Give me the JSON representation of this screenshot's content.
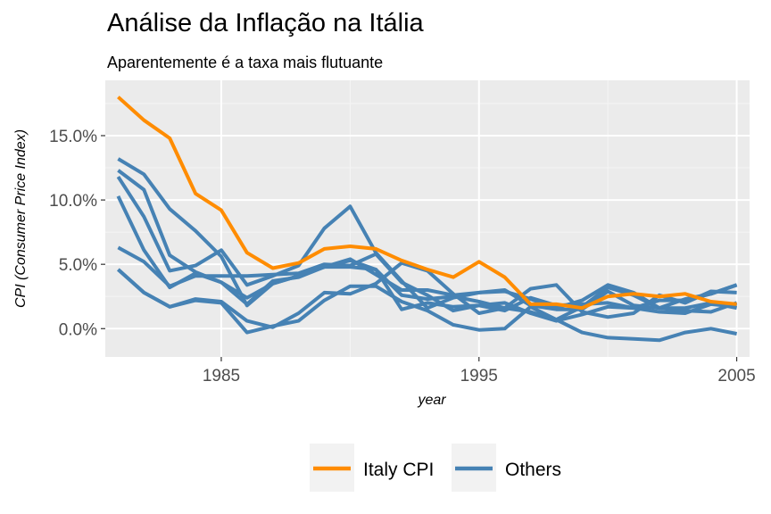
{
  "chart_data": {
    "type": "line",
    "title": "Análise da Inflação na Itália",
    "subtitle": "Aparentemente é a taxa mais flutuante",
    "xlabel": "year",
    "ylabel": "CPI (Consumer Price Index)",
    "xlim": [
      1980.5,
      2005.5
    ],
    "ylim": [
      -2.2,
      19.3
    ],
    "x_ticks": [
      1985,
      1995,
      2005
    ],
    "x_tick_labels": [
      "1985",
      "1995",
      "2005"
    ],
    "y_ticks": [
      0,
      5,
      10,
      15
    ],
    "y_tick_labels": [
      "0.0%",
      "5.0%",
      "10.0%",
      "15.0%"
    ],
    "grid": true,
    "legend_position": "bottom",
    "legend": [
      {
        "label": "Italy CPI",
        "color": "#ff8c00"
      },
      {
        "label": "Others",
        "color": "#4682b4"
      }
    ],
    "x": [
      1981,
      1982,
      1983,
      1984,
      1985,
      1986,
      1987,
      1988,
      1989,
      1990,
      1991,
      1992,
      1993,
      1994,
      1995,
      1996,
      1997,
      1998,
      1999,
      2000,
      2001,
      2002,
      2003,
      2004,
      2005
    ],
    "series": [
      {
        "name": "Italy CPI",
        "color": "#ff8c00",
        "values": [
          18.0,
          16.2,
          14.8,
          10.5,
          9.2,
          5.9,
          4.7,
          5.1,
          6.2,
          6.4,
          6.2,
          5.3,
          4.6,
          4.0,
          5.2,
          4.0,
          1.9,
          1.9,
          1.6,
          2.5,
          2.7,
          2.5,
          2.7,
          2.1,
          1.9
        ]
      },
      {
        "name": "Others",
        "color": "#4682b4",
        "values": [
          13.2,
          12.0,
          9.3,
          7.6,
          5.6,
          1.8,
          3.5,
          4.1,
          4.8,
          5.3,
          4.6,
          2.6,
          2.3,
          2.5,
          2.1,
          1.6,
          1.3,
          0.7,
          1.7,
          3.2,
          2.6,
          1.6,
          1.6,
          2.0,
          1.6
        ]
      },
      {
        "name": "Others",
        "color": "#4682b4",
        "values": [
          12.3,
          10.8,
          5.7,
          4.4,
          3.6,
          2.4,
          3.5,
          4.1,
          4.8,
          4.8,
          4.6,
          1.5,
          2.0,
          1.7,
          1.8,
          2.0,
          1.2,
          0.6,
          1.1,
          1.7,
          1.6,
          2.2,
          2.2,
          2.7,
          3.4
        ]
      },
      {
        "name": "Others",
        "color": "#4682b4",
        "values": [
          11.8,
          8.7,
          4.5,
          4.9,
          6.1,
          3.4,
          4.1,
          4.9,
          7.8,
          9.5,
          5.9,
          3.7,
          1.6,
          2.4,
          2.8,
          3.0,
          1.8,
          1.5,
          1.5,
          2.9,
          1.8,
          1.6,
          1.4,
          1.3,
          2.0
        ]
      },
      {
        "name": "Others",
        "color": "#4682b4",
        "values": [
          10.3,
          6.1,
          3.2,
          4.3,
          3.6,
          1.9,
          3.7,
          4.0,
          4.8,
          5.4,
          4.2,
          3.0,
          3.0,
          2.6,
          2.8,
          2.9,
          2.3,
          1.6,
          2.2,
          3.4,
          2.8,
          1.6,
          2.3,
          2.7,
          3.4
        ]
      },
      {
        "name": "Others",
        "color": "#4682b4",
        "values": [
          6.3,
          5.2,
          3.3,
          4.1,
          4.1,
          4.1,
          4.2,
          4.3,
          5.0,
          4.9,
          5.8,
          3.6,
          2.6,
          1.4,
          1.8,
          1.4,
          2.4,
          1.8,
          1.9,
          2.0,
          1.6,
          1.3,
          1.2,
          1.9,
          1.7
        ]
      },
      {
        "name": "Others",
        "color": "#4682b4",
        "values": [
          4.6,
          2.8,
          1.7,
          2.3,
          2.1,
          0.6,
          0.1,
          1.2,
          2.8,
          2.7,
          3.5,
          5.1,
          4.5,
          2.7,
          1.2,
          1.6,
          3.1,
          3.4,
          1.3,
          0.9,
          1.2,
          2.6,
          2.0,
          2.9,
          2.8
        ]
      },
      {
        "name": "Others",
        "color": "#4682b4",
        "values": [
          4.6,
          2.8,
          1.7,
          2.2,
          2.0,
          -0.3,
          0.2,
          0.6,
          2.2,
          3.3,
          3.3,
          2.1,
          1.4,
          0.3,
          -0.1,
          0.0,
          1.7,
          0.7,
          -0.3,
          -0.7,
          -0.8,
          -0.9,
          -0.3,
          0.0,
          -0.4
        ]
      }
    ]
  }
}
